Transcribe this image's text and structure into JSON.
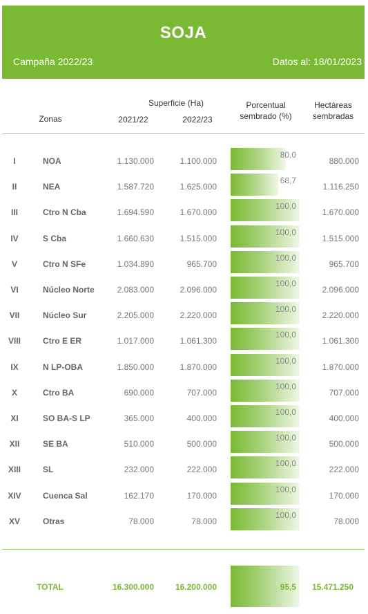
{
  "header": {
    "title": "SOJA",
    "campaign": "Campaña 2022/23",
    "date": "Datos al: 18/01/2023"
  },
  "columns": {
    "zones": "Zonas",
    "surface": "Superficie (Ha)",
    "year1": "2021/22",
    "year2": "2022/23",
    "percent_line1": "Porcentual",
    "percent_line2": "sembrado (%)",
    "sown_line1": "Hectáreas",
    "sown_line2": "sembradas"
  },
  "rows": [
    {
      "roman": "I",
      "zone": "NOA",
      "y2122": "1.130.000",
      "y2223": "1.100.000",
      "pct": "80,0",
      "pct_value": 80.0,
      "sown": "880.000"
    },
    {
      "roman": "II",
      "zone": "NEA",
      "y2122": "1.587.720",
      "y2223": "1.625.000",
      "pct": "68,7",
      "pct_value": 68.7,
      "sown": "1.116.250"
    },
    {
      "roman": "III",
      "zone": "Ctro N Cba",
      "y2122": "1.694.590",
      "y2223": "1.670.000",
      "pct": "100,0",
      "pct_value": 100.0,
      "sown": "1.670.000"
    },
    {
      "roman": "IV",
      "zone": "S Cba",
      "y2122": "1.660.630",
      "y2223": "1.515.000",
      "pct": "100,0",
      "pct_value": 100.0,
      "sown": "1.515.000"
    },
    {
      "roman": "V",
      "zone": "Ctro N SFe",
      "y2122": "1.034.890",
      "y2223": "965.700",
      "pct": "100,0",
      "pct_value": 100.0,
      "sown": "965.700"
    },
    {
      "roman": "VI",
      "zone": "Núcleo Norte",
      "y2122": "2.083.000",
      "y2223": "2.096.000",
      "pct": "100,0",
      "pct_value": 100.0,
      "sown": "2.096.000"
    },
    {
      "roman": "VII",
      "zone": "Núcleo Sur",
      "y2122": "2.205.000",
      "y2223": "2.220.000",
      "pct": "100,0",
      "pct_value": 100.0,
      "sown": "2.220.000"
    },
    {
      "roman": "VIII",
      "zone": "Ctro E ER",
      "y2122": "1.017.000",
      "y2223": "1.061.300",
      "pct": "100,0",
      "pct_value": 100.0,
      "sown": "1.061.300"
    },
    {
      "roman": "IX",
      "zone": "N LP-OBA",
      "y2122": "1.850.000",
      "y2223": "1.870.000",
      "pct": "100,0",
      "pct_value": 100.0,
      "sown": "1.870.000"
    },
    {
      "roman": "X",
      "zone": "Ctro BA",
      "y2122": "690.000",
      "y2223": "707.000",
      "pct": "100,0",
      "pct_value": 100.0,
      "sown": "707.000"
    },
    {
      "roman": "XI",
      "zone": "SO BA-S LP",
      "y2122": "365.000",
      "y2223": "400.000",
      "pct": "100,0",
      "pct_value": 100.0,
      "sown": "400.000"
    },
    {
      "roman": "XII",
      "zone": "SE BA",
      "y2122": "510.000",
      "y2223": "500.000",
      "pct": "100,0",
      "pct_value": 100.0,
      "sown": "500.000"
    },
    {
      "roman": "XIII",
      "zone": "SL",
      "y2122": "232.000",
      "y2223": "222.000",
      "pct": "100,0",
      "pct_value": 100.0,
      "sown": "222.000"
    },
    {
      "roman": "XIV",
      "zone": "Cuenca Sal",
      "y2122": "162.170",
      "y2223": "170.000",
      "pct": "100,0",
      "pct_value": 100.0,
      "sown": "170.000"
    },
    {
      "roman": "XV",
      "zone": "Otras",
      "y2122": "78.000",
      "y2223": "78.000",
      "pct": "100,0",
      "pct_value": 100.0,
      "sown": "78.000"
    }
  ],
  "total": {
    "label": "TOTAL",
    "y2122": "16.300.000",
    "y2223": "16.200.000",
    "pct": "95,5",
    "pct_value": 95.5,
    "sown": "15.471.250"
  },
  "colors": {
    "accent": "#7ab934",
    "divider": "#a6cf79"
  }
}
